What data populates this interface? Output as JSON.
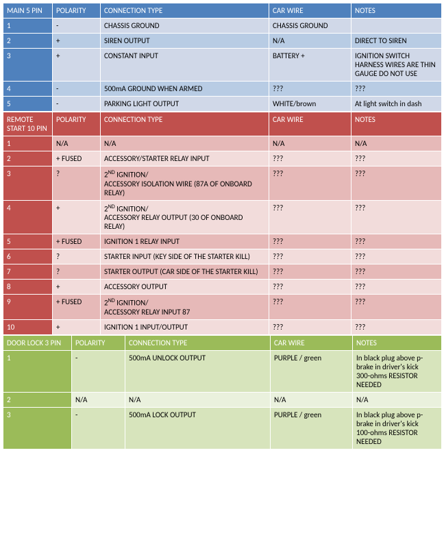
{
  "sections": [
    {
      "key": "main5",
      "header_bg": "#4f81bd",
      "header_fg": "#ffffff",
      "pin_bg": "#4f81bd",
      "pin_fg": "#ffffff",
      "row_bg_odd": "#d0d8e8",
      "row_bg_even": "#b8cce4",
      "layout": "std",
      "header": {
        "pin": "MAIN 5 PIN",
        "polarity": "POLARITY",
        "conn": "CONNECTION TYPE",
        "car": "CAR WIRE",
        "notes": "NOTES"
      },
      "rows": [
        {
          "pin": "1",
          "polarity": "-",
          "conn": "CHASSIS GROUND",
          "car": "CHASSIS GROUND",
          "notes": ""
        },
        {
          "pin": "2",
          "polarity": "+",
          "conn": "SIREN OUTPUT",
          "car": "N/A",
          "notes": "DIRECT TO SIREN"
        },
        {
          "pin": "3",
          "polarity": "+",
          "conn": "CONSTANT INPUT",
          "car": "BATTERY +",
          "notes": "IGNITION SWITCH HARNESS WIRES ARE THIN GAUGE DO NOT USE"
        },
        {
          "pin": "4",
          "polarity": "-",
          "conn": "500mA GROUND WHEN ARMED",
          "car": "???",
          "notes": "???"
        },
        {
          "pin": "5",
          "polarity": "-",
          "conn": "PARKING LIGHT OUTPUT",
          "car": "WHITE/brown",
          "notes": "At light switch in dash"
        }
      ]
    },
    {
      "key": "remote10",
      "header_bg": "#c0504d",
      "header_fg": "#ffffff",
      "pin_bg": "#c0504d",
      "pin_fg": "#ffffff",
      "row_bg_odd": "#e6b9b8",
      "row_bg_even": "#f2dcdb",
      "layout": "std",
      "header": {
        "pin": "REMOTE START 10 PIN",
        "polarity": "POLARITY",
        "conn": "CONNECTION TYPE",
        "car": "CAR WIRE",
        "notes": "NOTES"
      },
      "rows": [
        {
          "pin": "1",
          "polarity": "N/A",
          "conn": "N/A",
          "car": "N/A",
          "notes": "N/A"
        },
        {
          "pin": "2",
          "polarity": "+ FUSED",
          "conn": "ACCESSORY/STARTER RELAY INPUT",
          "car": "???",
          "notes": "???"
        },
        {
          "pin": "3",
          "polarity": "?",
          "conn_html": "2<span class='sup'>ND</span> IGNITION/<br>ACCESSORY ISOLATION WIRE (87A OF ONBOARD RELAY)",
          "car": "???",
          "notes": "???"
        },
        {
          "pin": "4",
          "polarity": "+",
          "conn_html": "2<span class='sup'>ND</span> IGNITION/<br>ACCESSORY RELAY OUTPUT (30 OF ONBOARD RELAY)",
          "car": "???",
          "notes": "???"
        },
        {
          "pin": "5",
          "polarity": "+ FUSED",
          "conn": "IGNITION 1 RELAY INPUT",
          "car": "???",
          "notes": "???"
        },
        {
          "pin": "6",
          "polarity": "?",
          "conn": "STARTER INPUT (KEY SIDE OF THE STARTER KILL)",
          "car": "???",
          "notes": "???"
        },
        {
          "pin": "7",
          "polarity": "?",
          "conn": "STARTER OUTPUT (CAR SIDE OF THE STARTER KILL)",
          "car": "???",
          "notes": "???"
        },
        {
          "pin": "8",
          "polarity": "+",
          "conn": "ACCESSORY OUTPUT",
          "car": "???",
          "notes": "???"
        },
        {
          "pin": "9",
          "polarity": "+ FUSED",
          "conn_html": "2<span class='sup'>ND</span> IGNITION/<br>ACCESSORY RELAY INPUT 87",
          "car": "???",
          "notes": "???"
        },
        {
          "pin": "10",
          "polarity": "+",
          "conn": "IGNITION 1 INPUT/OUTPUT",
          "car": "???",
          "notes": "???"
        }
      ]
    },
    {
      "key": "doorlock3",
      "header_bg": "#9bbb59",
      "header_fg": "#ffffff",
      "pin_bg": "#9bbb59",
      "pin_fg": "#ffffff",
      "row_bg_odd": "#d7e4bc",
      "row_bg_even": "#eaf1dd",
      "layout": "green",
      "header": {
        "pin": "DOOR LOCK 3 PIN",
        "polarity": "POLARITY",
        "conn": "CONNECTION TYPE",
        "car": "CAR WIRE",
        "notes": "NOTES"
      },
      "rows": [
        {
          "pin": "1",
          "polarity": "-",
          "conn": "500mA UNLOCK OUTPUT",
          "car": "PURPLE / green",
          "notes": "In black plug above p-brake in driver's kick\n300-ohms RESISTOR NEEDED"
        },
        {
          "pin": "2",
          "polarity": "N/A",
          "conn": "N/A",
          "car": "N/A",
          "notes": "N/A"
        },
        {
          "pin": "3",
          "polarity": "-",
          "conn": "500mA LOCK OUTPUT",
          "car": "PURPLE / green",
          "notes": "In black plug above p-brake in driver's kick\n100-ohms RESISTOR NEEDED"
        }
      ]
    }
  ]
}
